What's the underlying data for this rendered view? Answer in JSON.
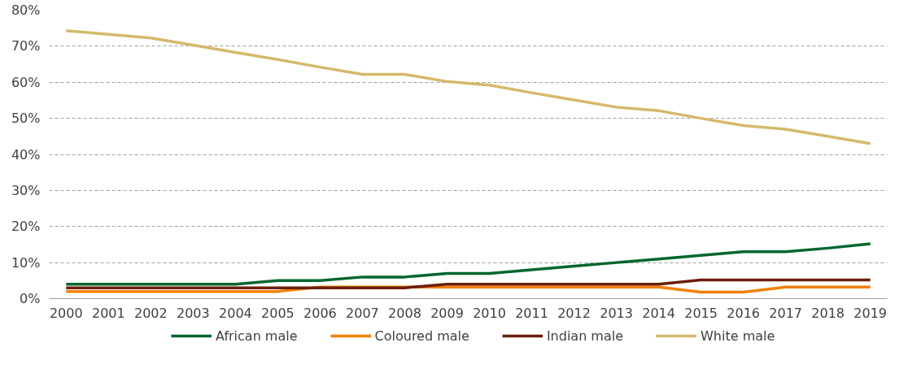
{
  "chart_data": {
    "type": "line",
    "categories": [
      "2000",
      "2001",
      "2002",
      "2003",
      "2004",
      "2005",
      "2006",
      "2007",
      "2008",
      "2009",
      "2010",
      "2011",
      "2012",
      "2013",
      "2014",
      "2015",
      "2016",
      "2017",
      "2018",
      "2019"
    ],
    "series": [
      {
        "name": "African male",
        "color": "#00662f",
        "values": [
          4,
          4,
          4,
          4,
          4,
          5,
          5,
          6,
          6,
          7,
          7,
          8,
          9,
          10,
          11,
          12,
          13,
          13,
          14,
          15.2
        ]
      },
      {
        "name": "Coloured male",
        "color": "#f08000",
        "values": [
          2,
          2,
          2,
          2,
          2,
          2,
          3.2,
          3.2,
          3.2,
          3.2,
          3.2,
          3.2,
          3.2,
          3.2,
          3.2,
          1.8,
          1.8,
          3.2,
          3.2,
          3.2
        ]
      },
      {
        "name": "Indian male",
        "color": "#6b1e0c",
        "values": [
          3,
          3,
          3,
          3,
          3,
          3,
          3,
          3,
          3,
          4,
          4,
          4,
          4,
          4,
          4,
          5.2,
          5.2,
          5.2,
          5.2,
          5.2
        ]
      },
      {
        "name": "White male",
        "color": "#d4b96c",
        "values": [
          74.3,
          73.3,
          72.3,
          70.3,
          68.3,
          66.3,
          64.2,
          62.2,
          62.2,
          60.2,
          59.2,
          57.1,
          55.1,
          53.1,
          52.1,
          50,
          48,
          47,
          45,
          43
        ]
      }
    ],
    "ylim": [
      0,
      80
    ],
    "yticks": [
      {
        "value": 0,
        "label": "0%"
      },
      {
        "value": 10,
        "label": "10%"
      },
      {
        "value": 20,
        "label": "20%"
      },
      {
        "value": 30,
        "label": "30%"
      },
      {
        "value": 40,
        "label": "40%"
      },
      {
        "value": 50,
        "label": "50%"
      },
      {
        "value": 60,
        "label": "60%"
      },
      {
        "value": 70,
        "label": "70%"
      },
      {
        "value": 80,
        "label": "80%"
      }
    ],
    "grid": "y",
    "legend": "bottom",
    "marker": "none",
    "line_style": "solid"
  }
}
